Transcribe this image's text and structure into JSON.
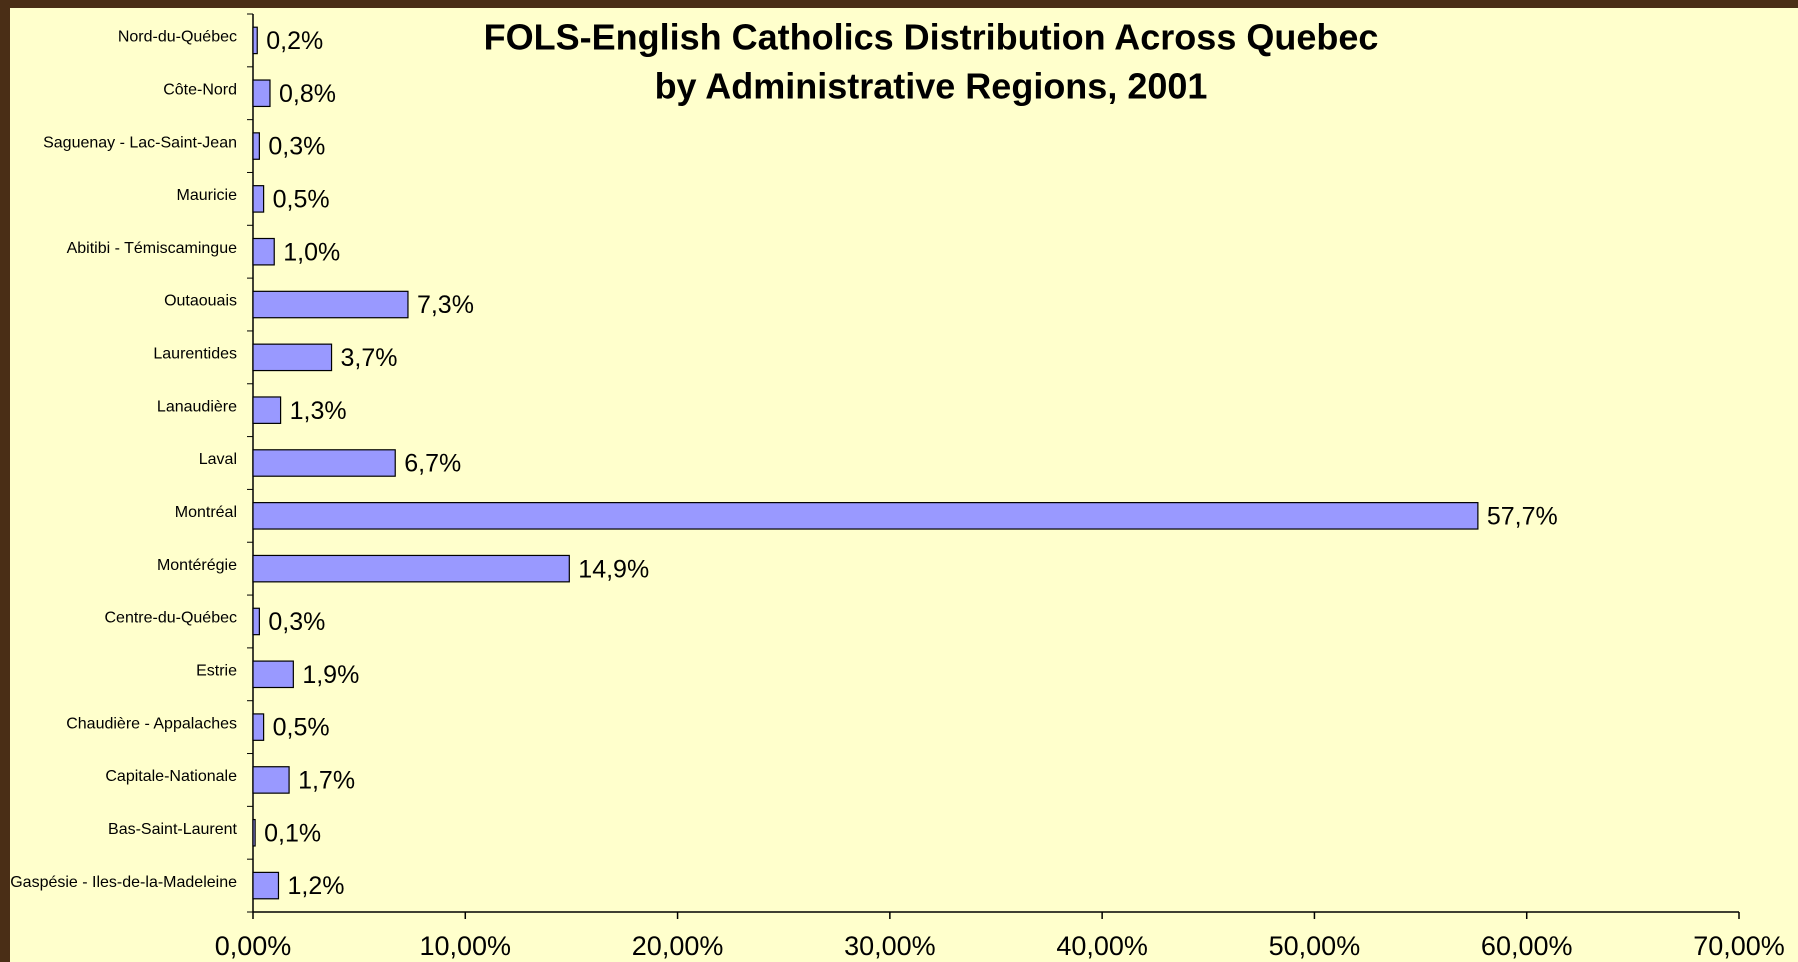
{
  "chart_data": {
    "type": "bar",
    "orientation": "horizontal",
    "title": "FOLS-English Catholics Distribution Across Quebec",
    "subtitle": "by Administrative Regions, 2001",
    "categories": [
      "Nord-du-Québec",
      "Côte-Nord",
      "Saguenay  - Lac-Saint-Jean",
      "Mauricie",
      "Abitibi - Témiscamingue",
      "Outaouais",
      "Laurentides",
      "Lanaudière",
      "Laval",
      "Montréal",
      "Montérégie",
      "Centre-du-Québec",
      "Estrie",
      "Chaudière - Appalaches",
      "Capitale-Nationale",
      "Bas-Saint-Laurent",
      "Gaspésie - Iles-de-la-Madeleine"
    ],
    "values": [
      0.2,
      0.8,
      0.3,
      0.5,
      1.0,
      7.3,
      3.7,
      1.3,
      6.7,
      57.7,
      14.9,
      0.3,
      1.9,
      0.5,
      1.7,
      0.1,
      1.2
    ],
    "value_labels": [
      "0,2%",
      "0,8%",
      "0,3%",
      "0,5%",
      "1,0%",
      "7,3%",
      "3,7%",
      "1,3%",
      "6,7%",
      "57,7%",
      "14,9%",
      "0,3%",
      "1,9%",
      "0,5%",
      "1,7%",
      "0,1%",
      "1,2%"
    ],
    "color": "#9999ff",
    "xlim": [
      0,
      70
    ],
    "xticks": [
      {
        "value": 0,
        "label": "0,00%"
      },
      {
        "value": 10,
        "label": "10,00%"
      },
      {
        "value": 20,
        "label": "20,00%"
      },
      {
        "value": 30,
        "label": "30,00%"
      },
      {
        "value": 40,
        "label": "40,00%"
      },
      {
        "value": 50,
        "label": "50,00%"
      },
      {
        "value": 60,
        "label": "60,00%"
      },
      {
        "value": 70,
        "label": "70,00%"
      }
    ],
    "grid": false
  }
}
